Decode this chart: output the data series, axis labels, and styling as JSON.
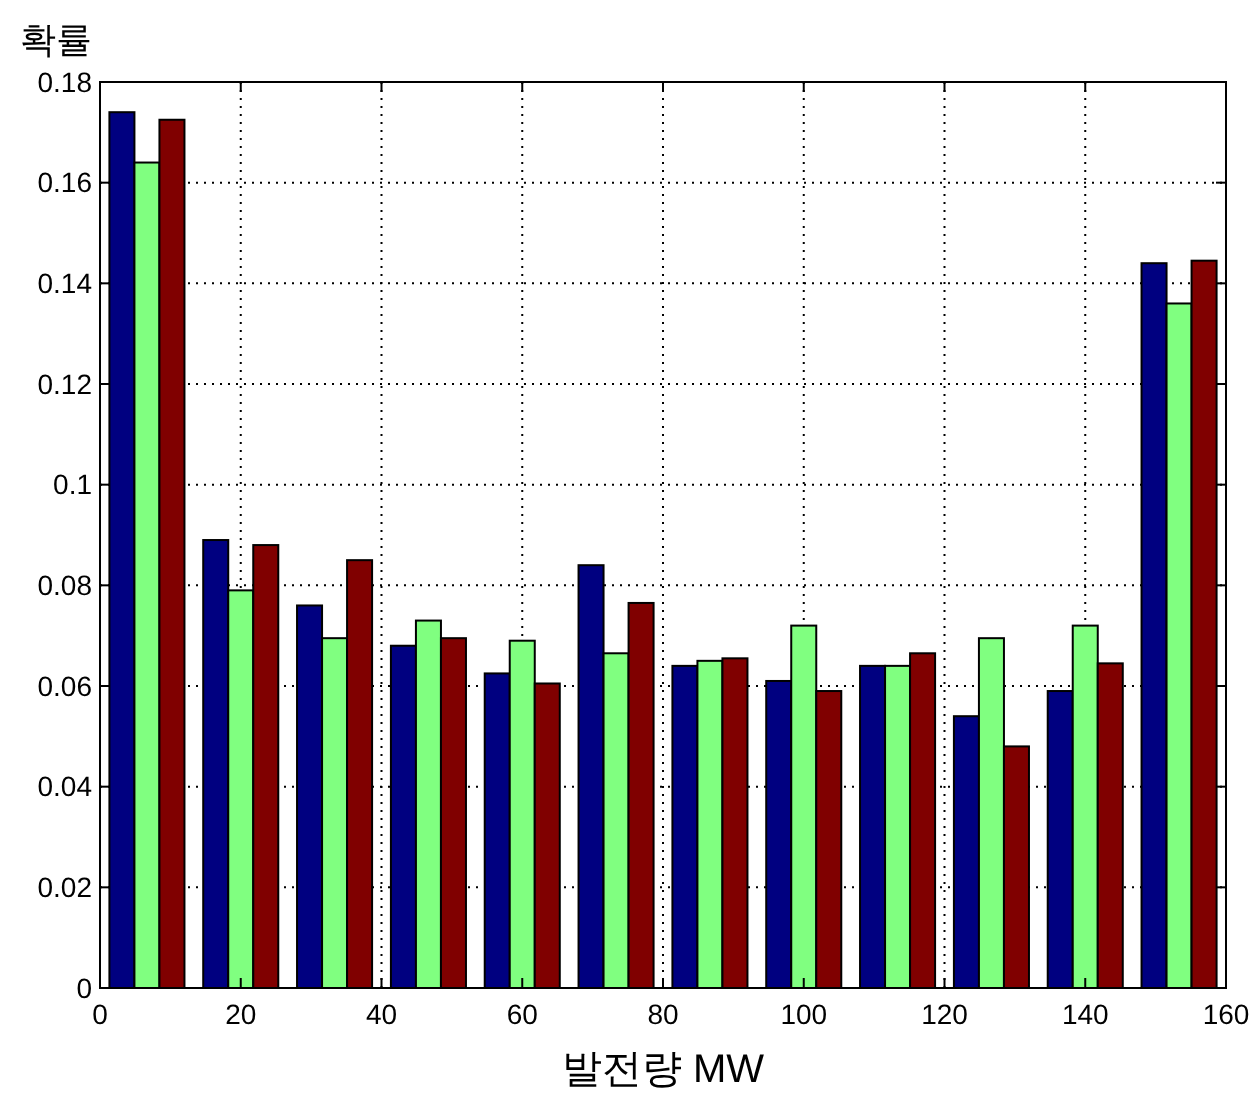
{
  "chart_data": {
    "type": "bar",
    "xlabel": "발전량 MW",
    "ylabel": "확률",
    "x": [
      6.67,
      20,
      33.33,
      46.67,
      60,
      73.33,
      86.67,
      100,
      113.33,
      126.67,
      140,
      153.33
    ],
    "series": [
      {
        "color": "#000080",
        "values": [
          0.174,
          0.089,
          0.076,
          0.068,
          0.0625,
          0.084,
          0.064,
          0.061,
          0.064,
          0.054,
          0.059,
          0.144
        ]
      },
      {
        "color": "#80ff80",
        "values": [
          0.164,
          0.079,
          0.0695,
          0.073,
          0.069,
          0.0665,
          0.065,
          0.072,
          0.064,
          0.0695,
          0.072,
          0.136
        ]
      },
      {
        "color": "#800000",
        "values": [
          0.1725,
          0.088,
          0.085,
          0.0695,
          0.0605,
          0.0765,
          0.0655,
          0.059,
          0.0665,
          0.048,
          0.0645,
          0.1445
        ]
      }
    ],
    "xlim": [
      0,
      160
    ],
    "xticks": [
      0,
      20,
      40,
      60,
      80,
      100,
      120,
      140,
      160
    ],
    "ylim": [
      0,
      0.18
    ],
    "yticks": [
      0,
      0.02,
      0.04,
      0.06,
      0.08,
      0.1,
      0.12,
      0.14,
      0.16,
      0.18
    ],
    "grid": true
  }
}
